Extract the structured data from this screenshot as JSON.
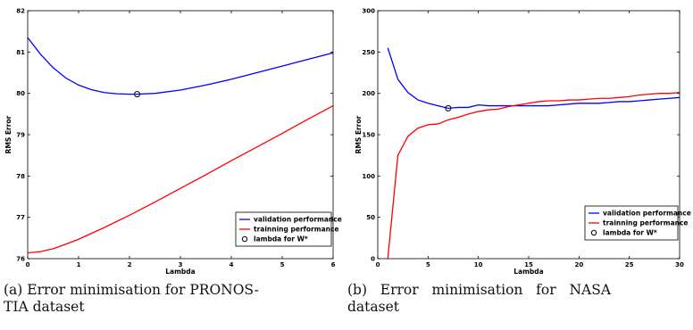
{
  "chart_data": [
    {
      "type": "line",
      "xlabel": "Lambda",
      "ylabel": "RMS Error",
      "xlim": [
        0,
        6
      ],
      "ylim": [
        76,
        82
      ],
      "xticks": [
        0,
        1,
        2,
        3,
        4,
        5,
        6
      ],
      "yticks": [
        76,
        77,
        78,
        79,
        80,
        81,
        82
      ],
      "grid": false,
      "legend_position": "lower-right",
      "series": [
        {
          "name": "validation performance",
          "color": "#0000ff",
          "x": [
            0,
            0.25,
            0.5,
            0.75,
            1,
            1.25,
            1.5,
            1.75,
            2,
            2.15,
            2.5,
            3,
            3.5,
            4,
            4.5,
            5,
            5.5,
            6
          ],
          "y": [
            81.35,
            80.95,
            80.62,
            80.37,
            80.2,
            80.09,
            80.02,
            79.99,
            79.98,
            79.98,
            80.0,
            80.08,
            80.2,
            80.34,
            80.5,
            80.66,
            80.82,
            80.98
          ]
        },
        {
          "name": "trainning performance",
          "color": "#ff0000",
          "x": [
            0,
            0.25,
            0.5,
            0.75,
            1,
            1.5,
            2,
            2.5,
            3,
            3.5,
            4,
            4.5,
            5,
            5.5,
            6
          ],
          "y": [
            76.14,
            76.17,
            76.24,
            76.35,
            76.47,
            76.75,
            77.05,
            77.37,
            77.7,
            78.03,
            78.37,
            78.7,
            79.03,
            79.37,
            79.7
          ]
        }
      ],
      "marker": {
        "name": "lambda for W*",
        "x": 2.15,
        "y": 79.98
      }
    },
    {
      "type": "line",
      "xlabel": "Lambda",
      "ylabel": "RMS Error",
      "xlim": [
        0,
        30
      ],
      "ylim": [
        0,
        300
      ],
      "xticks": [
        0,
        5,
        10,
        15,
        20,
        25,
        30
      ],
      "yticks": [
        0,
        50,
        100,
        150,
        200,
        250,
        300
      ],
      "grid": false,
      "legend_position": "lower-right",
      "series": [
        {
          "name": "validation performance",
          "color": "#0000ff",
          "x": [
            1,
            2,
            3,
            4,
            5,
            6,
            7,
            8,
            9,
            10,
            11,
            12,
            13,
            14,
            15,
            16,
            17,
            18,
            19,
            20,
            21,
            22,
            23,
            24,
            25,
            26,
            27,
            28,
            29,
            30
          ],
          "y": [
            255,
            217,
            201,
            192,
            188,
            185,
            182,
            183,
            183,
            186,
            185,
            185,
            185,
            185,
            185,
            185,
            185,
            186,
            187,
            188,
            188,
            188,
            189,
            190,
            190,
            191,
            192,
            193,
            194,
            195
          ]
        },
        {
          "name": "trainning performance",
          "color": "#ff0000",
          "x": [
            1,
            2,
            3,
            4,
            5,
            6,
            7,
            8,
            9,
            10,
            11,
            12,
            13,
            14,
            15,
            16,
            17,
            18,
            19,
            20,
            21,
            22,
            23,
            24,
            25,
            26,
            27,
            28,
            29,
            30
          ],
          "y": [
            0,
            125,
            148,
            158,
            162,
            163,
            168,
            171,
            175,
            178,
            180,
            181,
            184,
            186,
            188,
            190,
            191,
            191,
            192,
            192,
            193,
            194,
            194,
            195,
            196,
            198,
            199,
            200,
            200,
            201
          ]
        }
      ],
      "marker": {
        "name": "lambda for W*",
        "x": 7,
        "y": 182
      }
    }
  ],
  "captions": [
    {
      "line1": "(a) Error minimisation for PRONOS-",
      "line2": "TIA dataset"
    },
    {
      "line1": "(b)   Error   minimisation   for   NASA",
      "line2": "dataset"
    }
  ]
}
